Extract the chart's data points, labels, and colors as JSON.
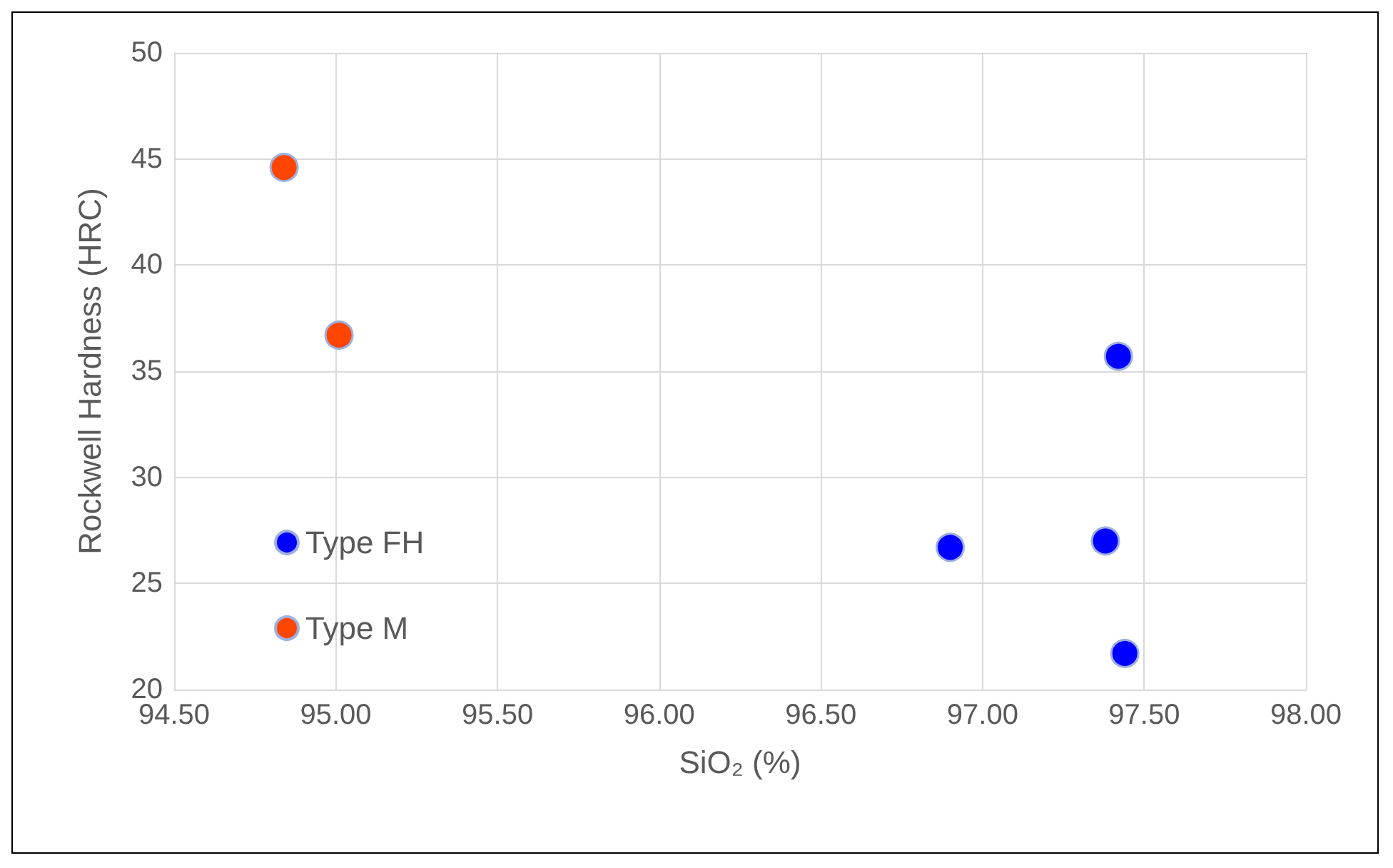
{
  "chart_data": {
    "type": "scatter",
    "xlabel": "SiO₂ (%)",
    "ylabel": "Rockwell Hardness (HRC)",
    "series": [
      {
        "name": "Type FH",
        "color": "#0000ff",
        "x": [
          97.42,
          96.9,
          97.38,
          97.44
        ],
        "values": [
          35.7,
          26.7,
          27.0,
          21.7
        ]
      },
      {
        "name": "Type M",
        "color": "#ff4500",
        "x": [
          94.84,
          95.01
        ],
        "values": [
          44.6,
          36.7
        ]
      }
    ],
    "xlim": [
      94.5,
      98
    ],
    "xticks": [
      {
        "value": 94.5,
        "label": "94.50"
      },
      {
        "value": 95,
        "label": "95.00"
      },
      {
        "value": 95.5,
        "label": "95.50"
      },
      {
        "value": 96,
        "label": "96.00"
      },
      {
        "value": 96.5,
        "label": "96.50"
      },
      {
        "value": 97,
        "label": "97.00"
      },
      {
        "value": 97.5,
        "label": "97.50"
      },
      {
        "value": 98,
        "label": "98.00"
      }
    ],
    "ylim": [
      20,
      50
    ],
    "yticks": [
      20,
      25,
      30,
      35,
      40,
      45,
      50
    ],
    "grid": true,
    "legend": "bottom left",
    "marker": "circle"
  }
}
